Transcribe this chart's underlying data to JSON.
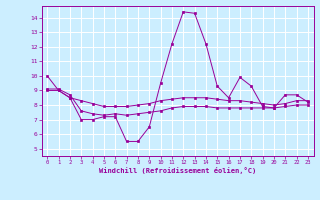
{
  "xlabel": "Windchill (Refroidissement éolien,°C)",
  "background_color": "#cceeff",
  "grid_color": "#ffffff",
  "line_color": "#990099",
  "x_ticks": [
    0,
    1,
    2,
    3,
    4,
    5,
    6,
    7,
    8,
    9,
    10,
    11,
    12,
    13,
    14,
    15,
    16,
    17,
    18,
    19,
    20,
    21,
    22,
    23
  ],
  "ylim": [
    4.5,
    14.8
  ],
  "yticks": [
    5,
    6,
    7,
    8,
    9,
    10,
    11,
    12,
    13,
    14
  ],
  "line1_x": [
    0,
    1,
    2,
    3,
    4,
    5,
    6,
    7,
    8,
    9,
    10,
    11,
    12,
    13,
    14,
    15,
    16,
    17,
    18,
    19,
    20,
    21,
    22,
    23
  ],
  "line1_y": [
    10.0,
    9.0,
    8.5,
    7.0,
    7.0,
    7.2,
    7.2,
    5.5,
    5.5,
    6.5,
    9.5,
    12.2,
    14.4,
    14.3,
    12.2,
    9.3,
    8.5,
    9.9,
    9.3,
    7.9,
    7.8,
    8.7,
    8.7,
    8.2
  ],
  "line2_x": [
    0,
    1,
    2,
    3,
    4,
    5,
    6,
    7,
    8,
    9,
    10,
    11,
    12,
    13,
    14,
    15,
    16,
    17,
    18,
    19,
    20,
    21,
    22,
    23
  ],
  "line2_y": [
    9.0,
    9.0,
    8.5,
    8.3,
    8.1,
    7.9,
    7.9,
    7.9,
    8.0,
    8.1,
    8.3,
    8.4,
    8.5,
    8.5,
    8.5,
    8.4,
    8.3,
    8.3,
    8.2,
    8.1,
    8.0,
    8.1,
    8.3,
    8.3
  ],
  "line3_x": [
    0,
    1,
    2,
    3,
    4,
    5,
    6,
    7,
    8,
    9,
    10,
    11,
    12,
    13,
    14,
    15,
    16,
    17,
    18,
    19,
    20,
    21,
    22,
    23
  ],
  "line3_y": [
    9.1,
    9.1,
    8.7,
    7.6,
    7.4,
    7.3,
    7.4,
    7.3,
    7.4,
    7.5,
    7.6,
    7.8,
    7.9,
    7.9,
    7.9,
    7.8,
    7.8,
    7.8,
    7.8,
    7.8,
    7.8,
    7.9,
    8.0,
    8.0
  ]
}
